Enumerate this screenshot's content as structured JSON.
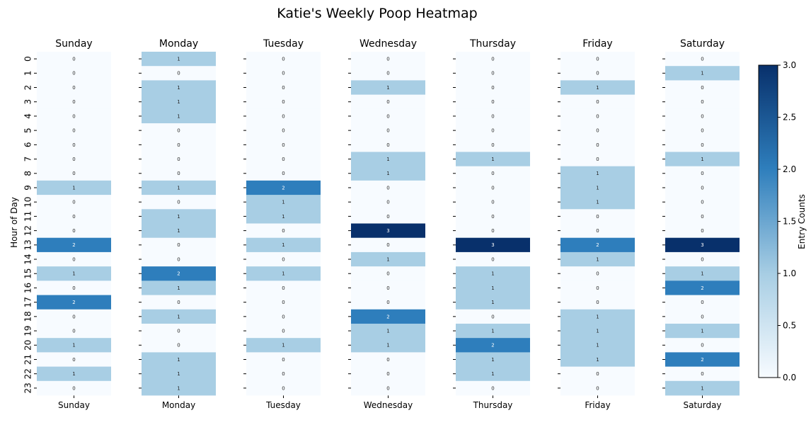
{
  "chart_data": {
    "type": "heatmap",
    "title": "Katie's Weekly Poop Heatmap",
    "ylabel": "Hour of Day",
    "colorbar_label": "Entry Counts",
    "colorbar_ticks": [
      "0.0",
      "0.5",
      "1.0",
      "1.5",
      "2.0",
      "2.5",
      "3.0"
    ],
    "vmin": 0,
    "vmax": 3,
    "hours": [
      "0",
      "1",
      "2",
      "3",
      "4",
      "5",
      "6",
      "7",
      "8",
      "9",
      "10",
      "11",
      "12",
      "13",
      "14",
      "15",
      "16",
      "17",
      "18",
      "19",
      "20",
      "21",
      "22",
      "23"
    ],
    "days": [
      {
        "name": "Sunday",
        "values": [
          0,
          0,
          0,
          0,
          0,
          0,
          0,
          0,
          0,
          1,
          0,
          0,
          0,
          2,
          0,
          1,
          0,
          2,
          0,
          0,
          1,
          0,
          1,
          0
        ]
      },
      {
        "name": "Monday",
        "values": [
          1,
          0,
          1,
          1,
          1,
          0,
          0,
          0,
          0,
          1,
          0,
          1,
          1,
          0,
          0,
          2,
          1,
          0,
          1,
          0,
          0,
          1,
          1,
          1
        ]
      },
      {
        "name": "Tuesday",
        "values": [
          0,
          0,
          0,
          0,
          0,
          0,
          0,
          0,
          0,
          2,
          1,
          1,
          0,
          1,
          0,
          1,
          0,
          0,
          0,
          0,
          1,
          0,
          0,
          0
        ]
      },
      {
        "name": "Wednesday",
        "values": [
          0,
          0,
          1,
          0,
          0,
          0,
          0,
          1,
          1,
          0,
          0,
          0,
          3,
          0,
          1,
          0,
          0,
          0,
          2,
          1,
          1,
          0,
          0,
          0
        ]
      },
      {
        "name": "Thursday",
        "values": [
          0,
          0,
          0,
          0,
          0,
          0,
          0,
          1,
          0,
          0,
          0,
          0,
          0,
          3,
          0,
          1,
          1,
          1,
          0,
          1,
          2,
          1,
          1,
          0
        ]
      },
      {
        "name": "Friday",
        "values": [
          0,
          0,
          1,
          0,
          0,
          0,
          0,
          0,
          1,
          1,
          1,
          0,
          0,
          2,
          1,
          0,
          0,
          0,
          1,
          1,
          1,
          1,
          0,
          0
        ]
      },
      {
        "name": "Saturday",
        "values": [
          0,
          1,
          0,
          0,
          0,
          0,
          0,
          1,
          0,
          0,
          0,
          0,
          0,
          3,
          0,
          1,
          2,
          0,
          0,
          1,
          0,
          2,
          0,
          1
        ]
      }
    ],
    "colors": {
      "0": "#f7fbff",
      "1": "#a8cee4",
      "2": "#2e7ebc",
      "3": "#08306b"
    }
  }
}
